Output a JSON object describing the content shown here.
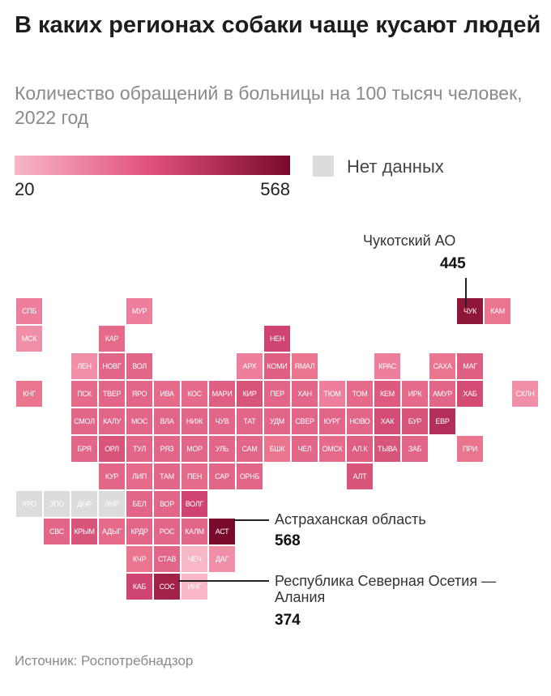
{
  "title": "В каких регионах собаки чаще кусают людей",
  "subtitle": "Количество обращений в больницы на 100 тысяч человек, 2022 год",
  "legend": {
    "min_label": "20",
    "max_label": "568",
    "nodata_label": "Нет данных",
    "color_low": "#f7b7c6",
    "color_high": "#7a0a2c",
    "nodata_color": "#dcdcdc"
  },
  "callouts": {
    "chukotka": {
      "name": "Чукотский АО",
      "value": "445"
    },
    "astrakhan": {
      "name": "Астраханская область",
      "value": "568"
    },
    "ossetia": {
      "name": "Республика Северная Осетия — Алания",
      "value": "374"
    }
  },
  "source": "Источник: Роспотребнадзор",
  "chart_data": {
    "type": "tile-grid choropleth",
    "color_scale": {
      "min": 20,
      "max": 568
    },
    "tiles": [
      {
        "label": "СПБ",
        "col": 0,
        "row": 0,
        "color": "#ee7f9c"
      },
      {
        "label": "МУР",
        "col": 4,
        "row": 0,
        "color": "#ee7f9c"
      },
      {
        "label": "МСК",
        "col": 0,
        "row": 1,
        "color": "#f28fa8"
      },
      {
        "label": "КАР",
        "col": 3,
        "row": 1,
        "color": "#e66a8a"
      },
      {
        "label": "НЕН",
        "col": 9,
        "row": 1,
        "color": "#cf4470"
      },
      {
        "label": "ЧУК",
        "col": 16,
        "row": 0,
        "color": "#8e1638"
      },
      {
        "label": "КАМ",
        "col": 17,
        "row": 0,
        "color": "#e9758f"
      },
      {
        "label": "ЛЕН",
        "col": 2,
        "row": 2,
        "color": "#f28fa8"
      },
      {
        "label": "НОВГ",
        "col": 3,
        "row": 2,
        "color": "#e26688"
      },
      {
        "label": "ВОЛ",
        "col": 4,
        "row": 2,
        "color": "#e26688"
      },
      {
        "label": "АРХ",
        "col": 8,
        "row": 2,
        "color": "#ee7f9c"
      },
      {
        "label": "КОМИ",
        "col": 9,
        "row": 2,
        "color": "#de5f82"
      },
      {
        "label": "ЯМАЛ",
        "col": 10,
        "row": 2,
        "color": "#e9758f"
      },
      {
        "label": "КРАС",
        "col": 13,
        "row": 2,
        "color": "#ee7f9c"
      },
      {
        "label": "САХА",
        "col": 15,
        "row": 2,
        "color": "#e9758f"
      },
      {
        "label": "МАГ",
        "col": 16,
        "row": 2,
        "color": "#de5f82"
      },
      {
        "label": "КНГ",
        "col": 0,
        "row": 3,
        "color": "#e9758f"
      },
      {
        "label": "ХАН",
        "col": 10,
        "row": 3,
        "color": "#e26688"
      },
      {
        "label": "ТЮМ",
        "col": 11,
        "row": 3,
        "color": "#ee7f9c"
      },
      {
        "label": "ТОМ",
        "col": 12,
        "row": 3,
        "color": "#e66a8a"
      },
      {
        "label": "КЕМ",
        "col": 13,
        "row": 3,
        "color": "#dd5a7e"
      },
      {
        "label": "ИРК",
        "col": 14,
        "row": 3,
        "color": "#e66a8a"
      },
      {
        "label": "АМУР",
        "col": 15,
        "row": 3,
        "color": "#e26688"
      },
      {
        "label": "ХАБ",
        "col": 16,
        "row": 3,
        "color": "#d34c74"
      },
      {
        "label": "СХЛН",
        "col": 18,
        "row": 3,
        "color": "#f28fa8"
      },
      {
        "label": "ПСК",
        "col": 2,
        "row": 3,
        "color": "#e66a8a"
      },
      {
        "label": "ТВЕР",
        "col": 3,
        "row": 3,
        "color": "#e26688"
      },
      {
        "label": "ЯРО",
        "col": 4,
        "row": 3,
        "color": "#e26688"
      },
      {
        "label": "ИВА",
        "col": 5,
        "row": 3,
        "color": "#e66a8a"
      },
      {
        "label": "КОС",
        "col": 6,
        "row": 3,
        "color": "#e66a8a"
      },
      {
        "label": "МАРИ",
        "col": 7,
        "row": 3,
        "color": "#de5f82"
      },
      {
        "label": "КИР",
        "col": 8,
        "row": 3,
        "color": "#d8557a"
      },
      {
        "label": "ПЕР",
        "col": 9,
        "row": 3,
        "color": "#e26688"
      },
      {
        "label": "СВЕР",
        "col": 10,
        "row": 4,
        "color": "#e26688"
      },
      {
        "label": "КУРГ",
        "col": 11,
        "row": 4,
        "color": "#e26688"
      },
      {
        "label": "НОВО",
        "col": 12,
        "row": 4,
        "color": "#e26688"
      },
      {
        "label": "ХАК",
        "col": 13,
        "row": 4,
        "color": "#d34c74"
      },
      {
        "label": "БУР",
        "col": 14,
        "row": 4,
        "color": "#d8557a"
      },
      {
        "label": "ЕВР",
        "col": 15,
        "row": 4,
        "color": "#b32e5a"
      },
      {
        "label": "СМОЛ",
        "col": 2,
        "row": 4,
        "color": "#e26688"
      },
      {
        "label": "КАЛУ",
        "col": 3,
        "row": 4,
        "color": "#e26688"
      },
      {
        "label": "МОС",
        "col": 4,
        "row": 4,
        "color": "#e26688"
      },
      {
        "label": "ВЛА",
        "col": 5,
        "row": 4,
        "color": "#e26688"
      },
      {
        "label": "НИЖ",
        "col": 6,
        "row": 4,
        "color": "#e26688"
      },
      {
        "label": "ЧУВ",
        "col": 7,
        "row": 4,
        "color": "#e26688"
      },
      {
        "label": "ТАТ",
        "col": 8,
        "row": 4,
        "color": "#e26688"
      },
      {
        "label": "УДМ",
        "col": 9,
        "row": 4,
        "color": "#e26688"
      },
      {
        "label": "ЧЕЛ",
        "col": 10,
        "row": 5,
        "color": "#e26688"
      },
      {
        "label": "ОМСК",
        "col": 11,
        "row": 5,
        "color": "#e66a8a"
      },
      {
        "label": "АЛ.К",
        "col": 12,
        "row": 5,
        "color": "#de5f82"
      },
      {
        "label": "ТЫВА",
        "col": 13,
        "row": 5,
        "color": "#d8557a"
      },
      {
        "label": "ЗАБ",
        "col": 14,
        "row": 5,
        "color": "#e26688"
      },
      {
        "label": "ПРИ",
        "col": 16,
        "row": 5,
        "color": "#e9758f"
      },
      {
        "label": "БРЯ",
        "col": 2,
        "row": 5,
        "color": "#e26688"
      },
      {
        "label": "ОРЛ",
        "col": 3,
        "row": 5,
        "color": "#d8557a"
      },
      {
        "label": "ТУЛ",
        "col": 4,
        "row": 5,
        "color": "#e26688"
      },
      {
        "label": "РЯЗ",
        "col": 5,
        "row": 5,
        "color": "#e26688"
      },
      {
        "label": "МОР",
        "col": 6,
        "row": 5,
        "color": "#e26688"
      },
      {
        "label": "УЛЬ",
        "col": 7,
        "row": 5,
        "color": "#e26688"
      },
      {
        "label": "САМ",
        "col": 8,
        "row": 5,
        "color": "#e26688"
      },
      {
        "label": "БШК",
        "col": 9,
        "row": 5,
        "color": "#e9758f"
      },
      {
        "label": "АЛТ",
        "col": 12,
        "row": 6,
        "color": "#d8557a"
      },
      {
        "label": "КУР",
        "col": 3,
        "row": 6,
        "color": "#e26688"
      },
      {
        "label": "ЛИП",
        "col": 4,
        "row": 6,
        "color": "#e66a8a"
      },
      {
        "label": "ТАМ",
        "col": 5,
        "row": 6,
        "color": "#e26688"
      },
      {
        "label": "ПЕН",
        "col": 6,
        "row": 6,
        "color": "#e66a8a"
      },
      {
        "label": "САР",
        "col": 7,
        "row": 6,
        "color": "#e26688"
      },
      {
        "label": "ОРНБ",
        "col": 8,
        "row": 6,
        "color": "#e26688"
      },
      {
        "label": "ХРО",
        "col": 0,
        "row": 7,
        "color": "#dcdcdc"
      },
      {
        "label": "ЗПО",
        "col": 1,
        "row": 7,
        "color": "#dcdcdc"
      },
      {
        "label": "ДНР",
        "col": 2,
        "row": 7,
        "color": "#dcdcdc"
      },
      {
        "label": "ЛНР",
        "col": 3,
        "row": 7,
        "color": "#dcdcdc"
      },
      {
        "label": "БЕЛ",
        "col": 4,
        "row": 7,
        "color": "#e26688"
      },
      {
        "label": "ВОР",
        "col": 5,
        "row": 7,
        "color": "#e26688"
      },
      {
        "label": "ВОЛГ",
        "col": 6,
        "row": 7,
        "color": "#cf4470"
      },
      {
        "label": "СВС",
        "col": 1,
        "row": 8,
        "color": "#e26688"
      },
      {
        "label": "КРЫМ",
        "col": 2,
        "row": 8,
        "color": "#d8557a"
      },
      {
        "label": "АДЫГ",
        "col": 3,
        "row": 8,
        "color": "#e66a8a"
      },
      {
        "label": "КРДР",
        "col": 4,
        "row": 8,
        "color": "#e26688"
      },
      {
        "label": "РОС",
        "col": 5,
        "row": 8,
        "color": "#e26688"
      },
      {
        "label": "КАЛМ",
        "col": 6,
        "row": 8,
        "color": "#e26688"
      },
      {
        "label": "АСТ",
        "col": 7,
        "row": 8,
        "color": "#7a0a2c"
      },
      {
        "label": "КЧР",
        "col": 4,
        "row": 9,
        "color": "#e9758f"
      },
      {
        "label": "СТАВ",
        "col": 5,
        "row": 9,
        "color": "#e26688"
      },
      {
        "label": "ЧЕЧ",
        "col": 6,
        "row": 9,
        "color": "#f7b7c6"
      },
      {
        "label": "ДАГ",
        "col": 7,
        "row": 9,
        "color": "#f28fa8"
      },
      {
        "label": "КАБ",
        "col": 4,
        "row": 10,
        "color": "#cf4470"
      },
      {
        "label": "СОС",
        "col": 5,
        "row": 10,
        "color": "#a22147"
      },
      {
        "label": "ИНГ",
        "col": 6,
        "row": 10,
        "color": "#f7b7c6"
      }
    ]
  }
}
